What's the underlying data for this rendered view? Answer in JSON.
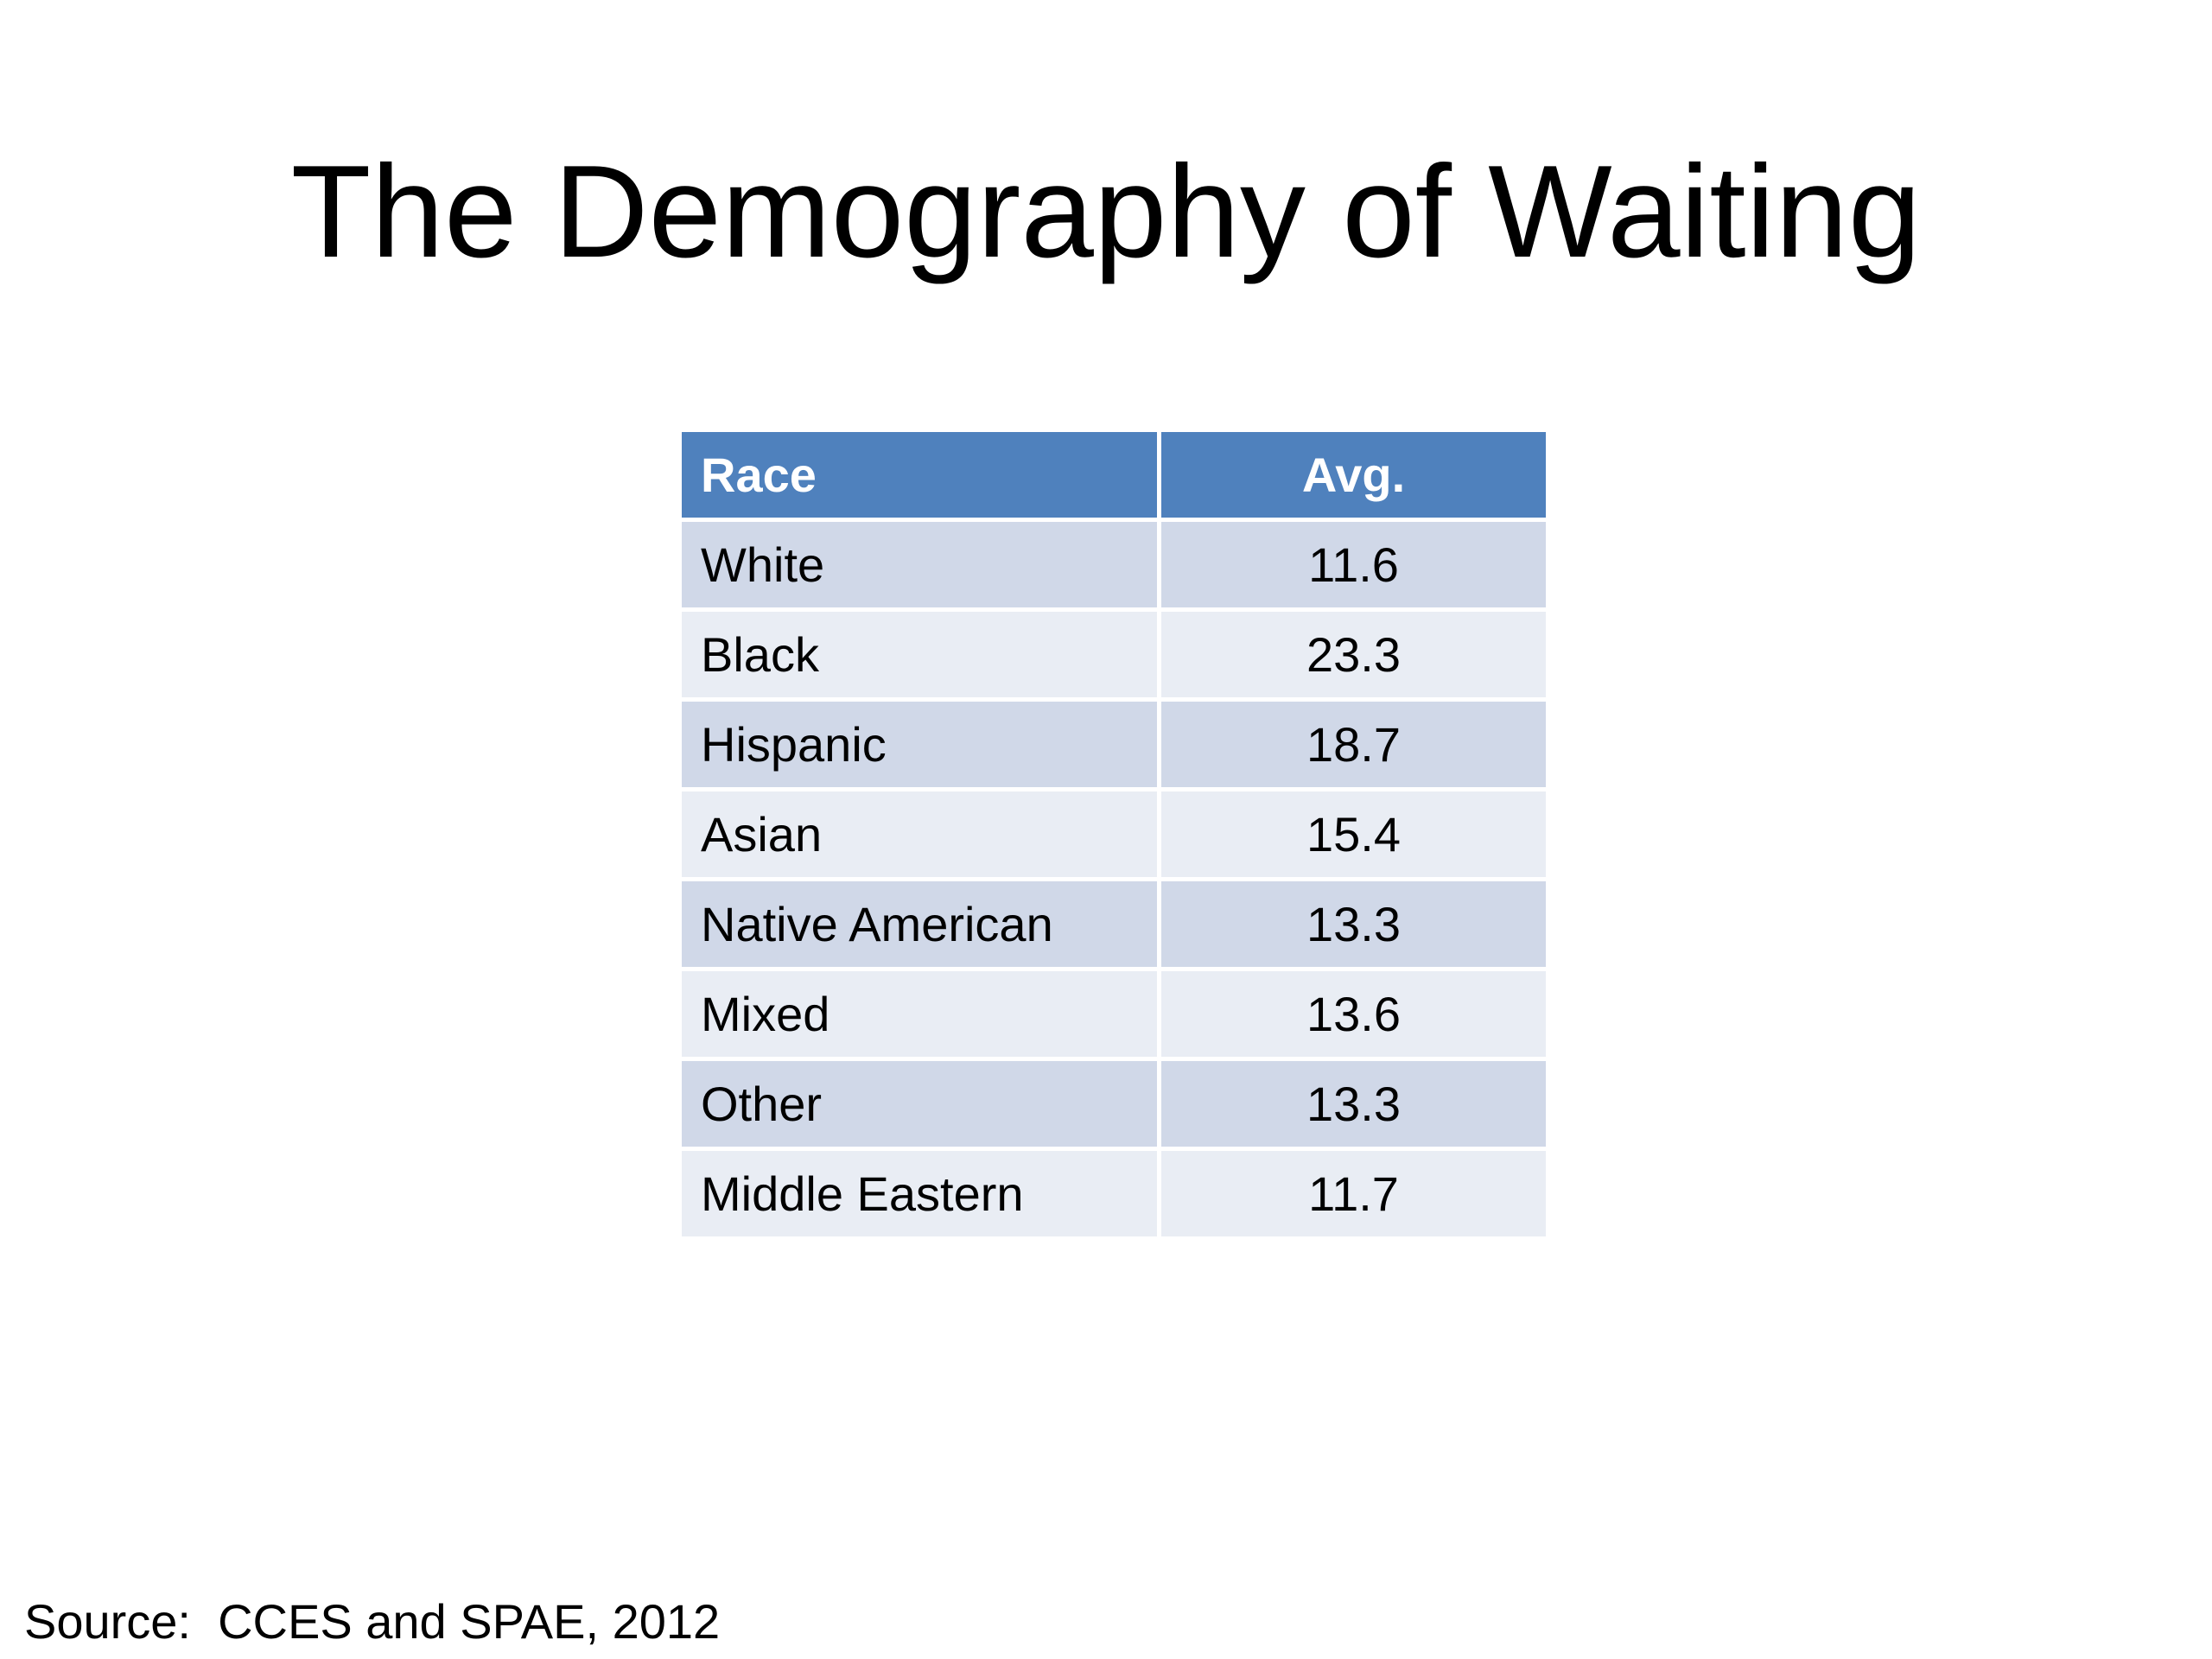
{
  "slide": {
    "title": "The Demography of Waiting",
    "source": "Source:  CCES and SPAE, 2012"
  },
  "table": {
    "headers": [
      "Race",
      "Avg."
    ],
    "rows": [
      {
        "race": "White",
        "avg": "11.6"
      },
      {
        "race": "Black",
        "avg": "23.3"
      },
      {
        "race": "Hispanic",
        "avg": "18.7"
      },
      {
        "race": "Asian",
        "avg": "15.4"
      },
      {
        "race": "Native American",
        "avg": "13.3"
      },
      {
        "race": "Mixed",
        "avg": "13.6"
      },
      {
        "race": "Other",
        "avg": "13.3"
      },
      {
        "race": "Middle Eastern",
        "avg": "11.7"
      }
    ]
  },
  "colors": {
    "header_bg": "#4f81bd",
    "row_band_dark": "#d0d8e8",
    "row_band_light": "#e9edf4"
  }
}
